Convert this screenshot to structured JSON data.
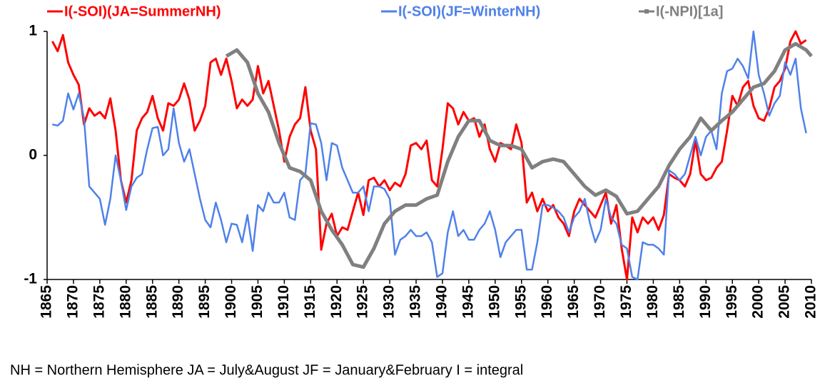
{
  "chart_data": {
    "type": "line",
    "note": "NH = Northern Hemisphere    JA = July&August    JF = January&February    I = integral",
    "x": [
      1866,
      1867,
      1868,
      1869,
      1870,
      1871,
      1872,
      1873,
      1874,
      1875,
      1876,
      1877,
      1878,
      1879,
      1880,
      1881,
      1882,
      1883,
      1884,
      1885,
      1886,
      1887,
      1888,
      1889,
      1890,
      1891,
      1892,
      1893,
      1894,
      1895,
      1896,
      1897,
      1898,
      1899,
      1900,
      1901,
      1902,
      1903,
      1904,
      1905,
      1906,
      1907,
      1908,
      1909,
      1910,
      1911,
      1912,
      1913,
      1914,
      1915,
      1916,
      1917,
      1918,
      1919,
      1920,
      1921,
      1922,
      1923,
      1924,
      1925,
      1926,
      1927,
      1928,
      1929,
      1930,
      1931,
      1932,
      1933,
      1934,
      1935,
      1936,
      1937,
      1938,
      1939,
      1940,
      1941,
      1942,
      1943,
      1944,
      1945,
      1946,
      1947,
      1948,
      1949,
      1950,
      1951,
      1952,
      1953,
      1954,
      1955,
      1956,
      1957,
      1958,
      1959,
      1960,
      1961,
      1962,
      1963,
      1964,
      1965,
      1966,
      1967,
      1968,
      1969,
      1970,
      1971,
      1972,
      1973,
      1974,
      1975,
      1976,
      1977,
      1978,
      1979,
      1980,
      1981,
      1982,
      1983,
      1984,
      1985,
      1986,
      1987,
      1988,
      1989,
      1990,
      1991,
      1992,
      1993,
      1994,
      1995,
      1996,
      1997,
      1998,
      1999,
      2000,
      2001,
      2002,
      2003,
      2004,
      2005,
      2006,
      2007,
      2008,
      2009
    ],
    "series": [
      {
        "name": "I(-SOI)(JA=SummerNH)",
        "color": "#ff0000",
        "values": [
          0.92,
          0.84,
          0.97,
          0.75,
          0.65,
          0.57,
          0.25,
          0.38,
          0.32,
          0.35,
          0.3,
          0.46,
          0.2,
          -0.2,
          -0.38,
          -0.2,
          0.2,
          0.3,
          0.35,
          0.48,
          0.3,
          0.2,
          0.42,
          0.4,
          0.45,
          0.58,
          0.45,
          0.2,
          0.28,
          0.4,
          0.75,
          0.78,
          0.65,
          0.78,
          0.6,
          0.38,
          0.45,
          0.4,
          0.45,
          0.72,
          0.5,
          0.6,
          0.4,
          0.2,
          -0.05,
          0.15,
          0.25,
          0.3,
          0.55,
          0.2,
          0.05,
          -0.76,
          -0.55,
          -0.47,
          -0.65,
          -0.58,
          -0.6,
          -0.45,
          -0.3,
          -0.48,
          -0.2,
          -0.18,
          -0.25,
          -0.2,
          -0.28,
          -0.22,
          -0.25,
          -0.15,
          0.08,
          0.1,
          0.05,
          0.12,
          -0.2,
          -0.25,
          0.05,
          0.42,
          0.38,
          0.25,
          0.35,
          0.28,
          0.3,
          0.15,
          0.25,
          0.05,
          -0.05,
          0.1,
          0.08,
          0.05,
          0.25,
          0.1,
          -0.38,
          -0.3,
          -0.45,
          -0.35,
          -0.45,
          -0.4,
          -0.5,
          -0.55,
          -0.65,
          -0.45,
          -0.35,
          -0.4,
          -0.45,
          -0.5,
          -0.4,
          -0.3,
          -0.55,
          -0.4,
          -0.75,
          -1.0,
          -0.5,
          -0.62,
          -0.5,
          -0.55,
          -0.5,
          -0.6,
          -0.48,
          -0.15,
          -0.18,
          -0.2,
          -0.25,
          -0.15,
          0.12,
          -0.15,
          -0.2,
          -0.18,
          -0.1,
          -0.05,
          0.2,
          0.48,
          0.4,
          0.55,
          0.6,
          0.4,
          0.3,
          0.28,
          0.38,
          0.55,
          0.6,
          0.7,
          0.92,
          1.0,
          0.9,
          0.93
        ]
      },
      {
        "name": "I(-SOI)(JF=WinterNH)",
        "color": "#4f81ea",
        "values": [
          0.25,
          0.24,
          0.28,
          0.5,
          0.37,
          0.5,
          0.3,
          -0.25,
          -0.3,
          -0.35,
          -0.56,
          -0.35,
          0.0,
          -0.2,
          -0.44,
          -0.25,
          -0.18,
          -0.15,
          0.05,
          0.22,
          0.23,
          0.0,
          0.05,
          0.38,
          0.1,
          -0.05,
          0.05,
          -0.15,
          -0.35,
          -0.52,
          -0.58,
          -0.38,
          -0.52,
          -0.7,
          -0.55,
          -0.56,
          -0.7,
          -0.48,
          -0.77,
          -0.4,
          -0.45,
          -0.3,
          -0.38,
          -0.38,
          -0.3,
          -0.5,
          -0.52,
          -0.2,
          -0.15,
          0.26,
          0.25,
          0.1,
          -0.2,
          0.1,
          0.08,
          -0.1,
          -0.2,
          -0.3,
          -0.3,
          -0.25,
          -0.45,
          -0.25,
          -0.25,
          -0.27,
          -0.35,
          -0.8,
          -0.68,
          -0.65,
          -0.6,
          -0.65,
          -0.65,
          -0.62,
          -0.7,
          -0.98,
          -0.95,
          -0.62,
          -0.45,
          -0.65,
          -0.6,
          -0.68,
          -0.68,
          -0.6,
          -0.55,
          -0.45,
          -0.6,
          -0.82,
          -0.7,
          -0.65,
          -0.6,
          -0.6,
          -0.92,
          -0.92,
          -0.7,
          -0.4,
          -0.4,
          -0.42,
          -0.45,
          -0.5,
          -0.62,
          -0.5,
          -0.45,
          -0.35,
          -0.55,
          -0.7,
          -0.6,
          -0.35,
          -0.5,
          -0.55,
          -0.72,
          -0.75,
          -0.98,
          -1.0,
          -0.7,
          -0.72,
          -0.72,
          -0.75,
          -0.8,
          -0.12,
          -0.15,
          -0.2,
          -0.15,
          0.0,
          0.15,
          0.0,
          0.15,
          0.2,
          0.05,
          0.5,
          0.68,
          0.7,
          0.78,
          0.72,
          0.62,
          1.0,
          0.65,
          0.5,
          0.32,
          0.42,
          0.48,
          0.75,
          0.65,
          0.78,
          0.38,
          0.18
        ]
      },
      {
        "name": "I(-NPI)[1a]",
        "color": "#808080",
        "x": [
          1899,
          1901,
          1903,
          1905,
          1907,
          1909,
          1911,
          1913,
          1915,
          1917,
          1919,
          1921,
          1923,
          1925,
          1927,
          1929,
          1931,
          1933,
          1935,
          1937,
          1939,
          1941,
          1943,
          1945,
          1947,
          1949,
          1951,
          1953,
          1955,
          1957,
          1959,
          1961,
          1963,
          1965,
          1967,
          1969,
          1971,
          1973,
          1975,
          1977,
          1979,
          1981,
          1983,
          1985,
          1987,
          1989,
          1991,
          1993,
          1995,
          1997,
          1999,
          2001,
          2003,
          2005,
          2007,
          2009,
          2010
        ],
        "values": [
          0.8,
          0.85,
          0.75,
          0.5,
          0.35,
          0.1,
          -0.1,
          -0.13,
          -0.2,
          -0.45,
          -0.6,
          -0.72,
          -0.88,
          -0.9,
          -0.75,
          -0.55,
          -0.45,
          -0.4,
          -0.4,
          -0.35,
          -0.32,
          -0.05,
          0.15,
          0.28,
          0.28,
          0.12,
          0.08,
          0.08,
          0.05,
          -0.1,
          -0.05,
          -0.03,
          -0.05,
          -0.15,
          -0.25,
          -0.32,
          -0.28,
          -0.33,
          -0.47,
          -0.45,
          -0.35,
          -0.25,
          -0.08,
          0.05,
          0.15,
          0.3,
          0.2,
          0.28,
          0.35,
          0.45,
          0.55,
          0.58,
          0.68,
          0.85,
          0.9,
          0.85,
          0.8
        ]
      }
    ],
    "xlim": [
      1865,
      2010
    ],
    "xticks": [
      1865,
      1870,
      1875,
      1880,
      1885,
      1890,
      1895,
      1900,
      1905,
      1910,
      1915,
      1920,
      1925,
      1930,
      1935,
      1940,
      1945,
      1950,
      1955,
      1960,
      1965,
      1970,
      1975,
      1980,
      1985,
      1990,
      1995,
      2000,
      2005,
      2010
    ],
    "ylim": [
      -1,
      1
    ],
    "yticks": [
      -1,
      0,
      1
    ]
  }
}
